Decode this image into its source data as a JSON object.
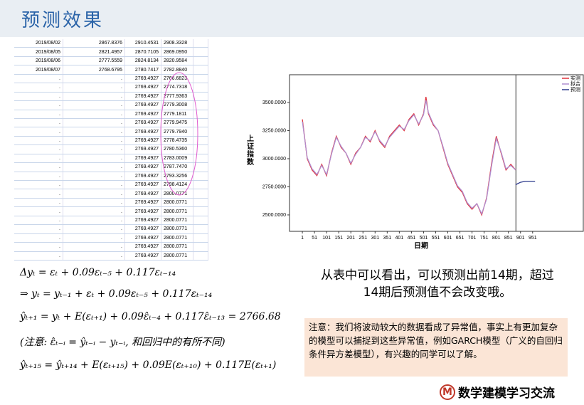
{
  "header": {
    "title": "预测效果"
  },
  "table": {
    "rows": [
      [
        "2019/08/02",
        "2867.8376",
        "2910.4531",
        "2908.3328"
      ],
      [
        "2019/08/05",
        "2821.4957",
        "2870.7105",
        "2869.0950"
      ],
      [
        "2019/08/06",
        "2777.5559",
        "2824.8134",
        "2820.9584"
      ],
      [
        "2019/08/07",
        "2768.6795",
        "2780.7417",
        "2782.8840"
      ],
      [
        ".",
        ".",
        "2769.4927",
        "2766.6823"
      ],
      [
        ".",
        ".",
        "2769.4927",
        "2774.7318"
      ],
      [
        ".",
        ".",
        "2769.4927",
        "2777.9363"
      ],
      [
        ".",
        ".",
        "2769.4927",
        "2779.3008"
      ],
      [
        ".",
        ".",
        "2769.4927",
        "2779.1811"
      ],
      [
        ".",
        ".",
        "2769.4927",
        "2779.9475"
      ],
      [
        ".",
        ".",
        "2769.4927",
        "2779.7940"
      ],
      [
        ".",
        ".",
        "2769.4927",
        "2778.4735"
      ],
      [
        ".",
        ".",
        "2769.4927",
        "2780.5360"
      ],
      [
        ".",
        ".",
        "2769.4927",
        "2783.0009"
      ],
      [
        ".",
        ".",
        "2769.4927",
        "2787.7470"
      ],
      [
        ".",
        ".",
        "2769.4927",
        "2793.3256"
      ],
      [
        ".",
        ".",
        "2769.4927",
        "2798.4124"
      ],
      [
        ".",
        ".",
        "2769.4927",
        "2800.0771"
      ],
      [
        ".",
        ".",
        "2769.4927",
        "2800.0771"
      ],
      [
        ".",
        ".",
        "2769.4927",
        "2800.0771"
      ],
      [
        ".",
        ".",
        "2769.4927",
        "2800.0771"
      ],
      [
        ".",
        ".",
        "2769.4927",
        "2800.0771"
      ],
      [
        ".",
        ".",
        "2769.4927",
        "2800.0771"
      ],
      [
        ".",
        ".",
        "2769.4927",
        "2800.0771"
      ],
      [
        ".",
        ".",
        "2769.4927",
        "2800.0771"
      ]
    ]
  },
  "chart_data": {
    "type": "line",
    "ylabel": "上证指数",
    "xlabel": "日期",
    "x": [
      1,
      21,
      41,
      61,
      81,
      101,
      121,
      141,
      161,
      181,
      201,
      221,
      241,
      261,
      281,
      301,
      321,
      341,
      361,
      381,
      401,
      421,
      441,
      461,
      481,
      501,
      511,
      521,
      541,
      561,
      581,
      601,
      621,
      641,
      661,
      681,
      701,
      721,
      741,
      761,
      781,
      801,
      821,
      841,
      861,
      881,
      901,
      921,
      941,
      961
    ],
    "series": [
      {
        "name": "实测",
        "color": "#e0323c",
        "values": [
          3350,
          3000,
          2900,
          2850,
          2950,
          2850,
          3050,
          3200,
          3100,
          3050,
          2950,
          3050,
          3100,
          3200,
          3150,
          3250,
          3150,
          3100,
          3200,
          3250,
          3300,
          3250,
          3350,
          3400,
          3300,
          3400,
          3550,
          3400,
          3300,
          3250,
          3100,
          2950,
          2850,
          2750,
          2700,
          2600,
          2550,
          2600,
          2500,
          2650,
          2950,
          3200,
          3050,
          2900,
          2950,
          2900,
          null,
          null,
          null,
          null
        ]
      },
      {
        "name": "拟合",
        "color": "#b08fd0",
        "values": [
          3330,
          3010,
          2910,
          2860,
          2940,
          2860,
          3040,
          3190,
          3110,
          3050,
          2960,
          3040,
          3100,
          3190,
          3160,
          3240,
          3160,
          3110,
          3190,
          3240,
          3290,
          3260,
          3340,
          3390,
          3310,
          3390,
          3520,
          3410,
          3310,
          3250,
          3110,
          2960,
          2860,
          2760,
          2710,
          2610,
          2560,
          2600,
          2510,
          2640,
          2930,
          3180,
          3060,
          2910,
          2940,
          2900,
          null,
          null,
          null,
          null
        ]
      },
      {
        "name": "预测",
        "color": "#2d3a8c",
        "values": [
          null,
          null,
          null,
          null,
          null,
          null,
          null,
          null,
          null,
          null,
          null,
          null,
          null,
          null,
          null,
          null,
          null,
          null,
          null,
          null,
          null,
          null,
          null,
          null,
          null,
          null,
          null,
          null,
          null,
          null,
          null,
          null,
          null,
          null,
          null,
          null,
          null,
          null,
          null,
          null,
          null,
          null,
          null,
          null,
          null,
          2769,
          2790,
          2800,
          2800,
          2800
        ]
      }
    ],
    "xlim": [
      -52,
      1160
    ],
    "ylim": [
      2354,
      3747
    ],
    "xticks": [
      1,
      51,
      101,
      151,
      201,
      251,
      301,
      351,
      401,
      451,
      501,
      551,
      601,
      651,
      701,
      751,
      801,
      851,
      901,
      951
    ],
    "yticks": [
      {
        "value": 2500,
        "label": "2500.0000"
      },
      {
        "value": 2750,
        "label": "2750.0000"
      },
      {
        "value": 3000,
        "label": "3000.0000"
      },
      {
        "value": 3250,
        "label": "3250.0000"
      },
      {
        "value": 3500,
        "label": "3500.0000"
      }
    ],
    "vline": 882
  },
  "formulas": [
    "Δyₜ = εₜ + 0.09εₜ₋₅ + 0.117εₜ₋₁₄",
    "⇒ yₜ = yₜ₋₁ + εₜ + 0.09εₜ₋₅ + 0.117εₜ₋₁₄",
    "ŷₜ₊₁ = yₜ + E(εₜ₊₁) + 0.09ε̂ₜ₋₄ + 0.117ε̂ₜ₋₁₃ = 2766.68",
    "(注意: ε̂ₜ₋ᵢ = ŷₜ₋ᵢ − yₜ₋ᵢ, 和回归中的有所不同)",
    "ŷₜ₊₁₅ = ŷₜ₊₁₄ + E(εₜ₊₁₅) + 0.09E(εₜ₊₁₀) + 0.117E(εₜ₊₁)"
  ],
  "conclusion": "从表中可以看出，可以预测出前14期，超过14期后预测值不会改变哦。",
  "note": "注意：我们将波动较大的数据看成了异常值，事实上有更加复杂的模型可以捕捉到这些异常值，例如GARCH模型（广义的自回归条件异方差模型），有兴趣的同学可以了解。",
  "logo": {
    "letter": "M",
    "text": "数学建模学习交流"
  }
}
